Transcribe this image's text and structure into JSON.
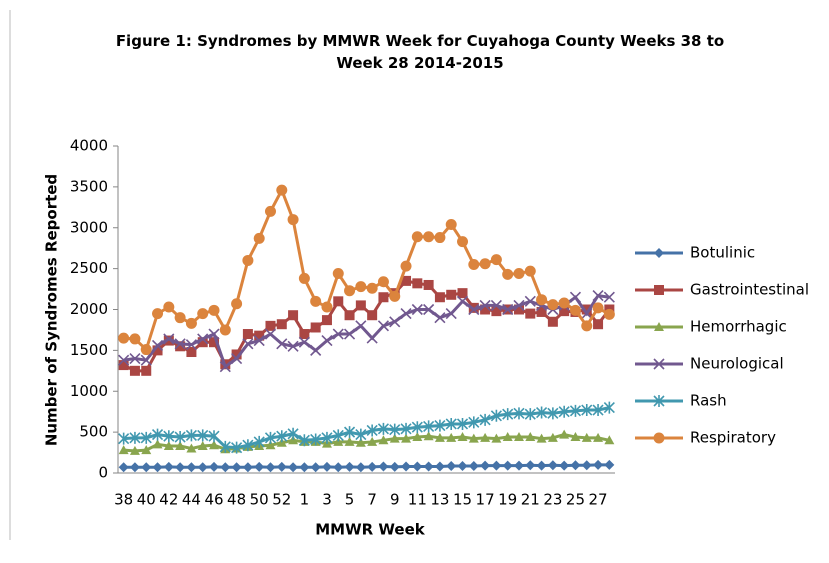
{
  "chart_data": {
    "type": "line",
    "title": "Figure 1: Syndromes by MMWR Week for Cuyahoga County Weeks 38 to Week 28 2014-2015",
    "x_label": "MMWR Week",
    "y_label": "Number of Syndromes Reported",
    "categories": [
      "38",
      null,
      "40",
      null,
      "42",
      null,
      "44",
      null,
      "46",
      null,
      "48",
      null,
      "50",
      null,
      "52",
      null,
      "1",
      null,
      "3",
      null,
      "5",
      null,
      "7",
      null,
      "9",
      null,
      "11",
      null,
      "13",
      null,
      "15",
      null,
      "17",
      null,
      "19",
      null,
      "21",
      null,
      "23",
      null,
      "25",
      null,
      "27",
      null
    ],
    "ylim": [
      0,
      4000
    ],
    "yticks": [
      0,
      500,
      1000,
      1500,
      2000,
      2500,
      3000,
      3500,
      4000
    ],
    "legend": "right",
    "series": [
      {
        "name": "Botulinic",
        "color": "#4572a7",
        "marker": "diamond",
        "values": [
          70,
          70,
          70,
          70,
          75,
          70,
          70,
          70,
          75,
          70,
          70,
          70,
          75,
          70,
          75,
          70,
          70,
          70,
          75,
          70,
          75,
          70,
          75,
          80,
          75,
          80,
          80,
          80,
          80,
          85,
          85,
          85,
          90,
          90,
          90,
          90,
          95,
          90,
          95,
          90,
          95,
          95,
          100,
          100
        ]
      },
      {
        "name": "Gastrointestinal",
        "color": "#aa4643",
        "marker": "square",
        "values": [
          1320,
          1250,
          1250,
          1500,
          1620,
          1550,
          1480,
          1600,
          1600,
          1330,
          1450,
          1700,
          1680,
          1800,
          1820,
          1930,
          1700,
          1780,
          1870,
          2100,
          1930,
          2050,
          1930,
          2150,
          2200,
          2350,
          2320,
          2300,
          2150,
          2180,
          2200,
          2020,
          2000,
          1980,
          2000,
          2000,
          1950,
          1970,
          1850,
          1980,
          1970,
          2000,
          1820,
          2000
        ]
      },
      {
        "name": "Hemorrhagic",
        "color": "#89a54e",
        "marker": "triangle",
        "values": [
          280,
          270,
          280,
          350,
          330,
          330,
          300,
          330,
          340,
          290,
          300,
          320,
          330,
          340,
          370,
          400,
          380,
          380,
          360,
          380,
          380,
          370,
          380,
          400,
          420,
          420,
          440,
          450,
          430,
          430,
          440,
          420,
          430,
          420,
          440,
          440,
          440,
          420,
          430,
          470,
          440,
          430,
          430,
          400
        ]
      },
      {
        "name": "Neurological",
        "color": "#71588f",
        "marker": "x",
        "values": [
          1380,
          1400,
          1380,
          1560,
          1640,
          1580,
          1570,
          1640,
          1700,
          1300,
          1400,
          1580,
          1620,
          1700,
          1580,
          1550,
          1600,
          1500,
          1620,
          1700,
          1700,
          1800,
          1650,
          1800,
          1850,
          1950,
          2000,
          2000,
          1900,
          1950,
          2100,
          2000,
          2050,
          2050,
          2000,
          2050,
          2100,
          2050,
          2000,
          2050,
          2150,
          1950,
          2170,
          2150
        ]
      },
      {
        "name": "Rash",
        "color": "#4198af",
        "marker": "star",
        "values": [
          420,
          430,
          430,
          470,
          450,
          440,
          460,
          460,
          450,
          320,
          310,
          340,
          380,
          430,
          450,
          480,
          400,
          410,
          430,
          460,
          500,
          470,
          520,
          540,
          530,
          540,
          560,
          570,
          580,
          600,
          600,
          620,
          650,
          700,
          720,
          730,
          720,
          740,
          730,
          750,
          760,
          770,
          770,
          800
        ]
      },
      {
        "name": "Respiratory",
        "color": "#db843d",
        "marker": "circle",
        "values": [
          1650,
          1640,
          1510,
          1950,
          2030,
          1900,
          1830,
          1950,
          1990,
          1750,
          2070,
          2600,
          2870,
          3200,
          3460,
          3100,
          2380,
          2100,
          2030,
          2440,
          2230,
          2280,
          2260,
          2340,
          2160,
          2530,
          2890,
          2890,
          2880,
          3040,
          2830,
          2550,
          2560,
          2610,
          2430,
          2440,
          2470,
          2120,
          2060,
          2080,
          1990,
          1800,
          2020,
          1940
        ]
      }
    ]
  }
}
